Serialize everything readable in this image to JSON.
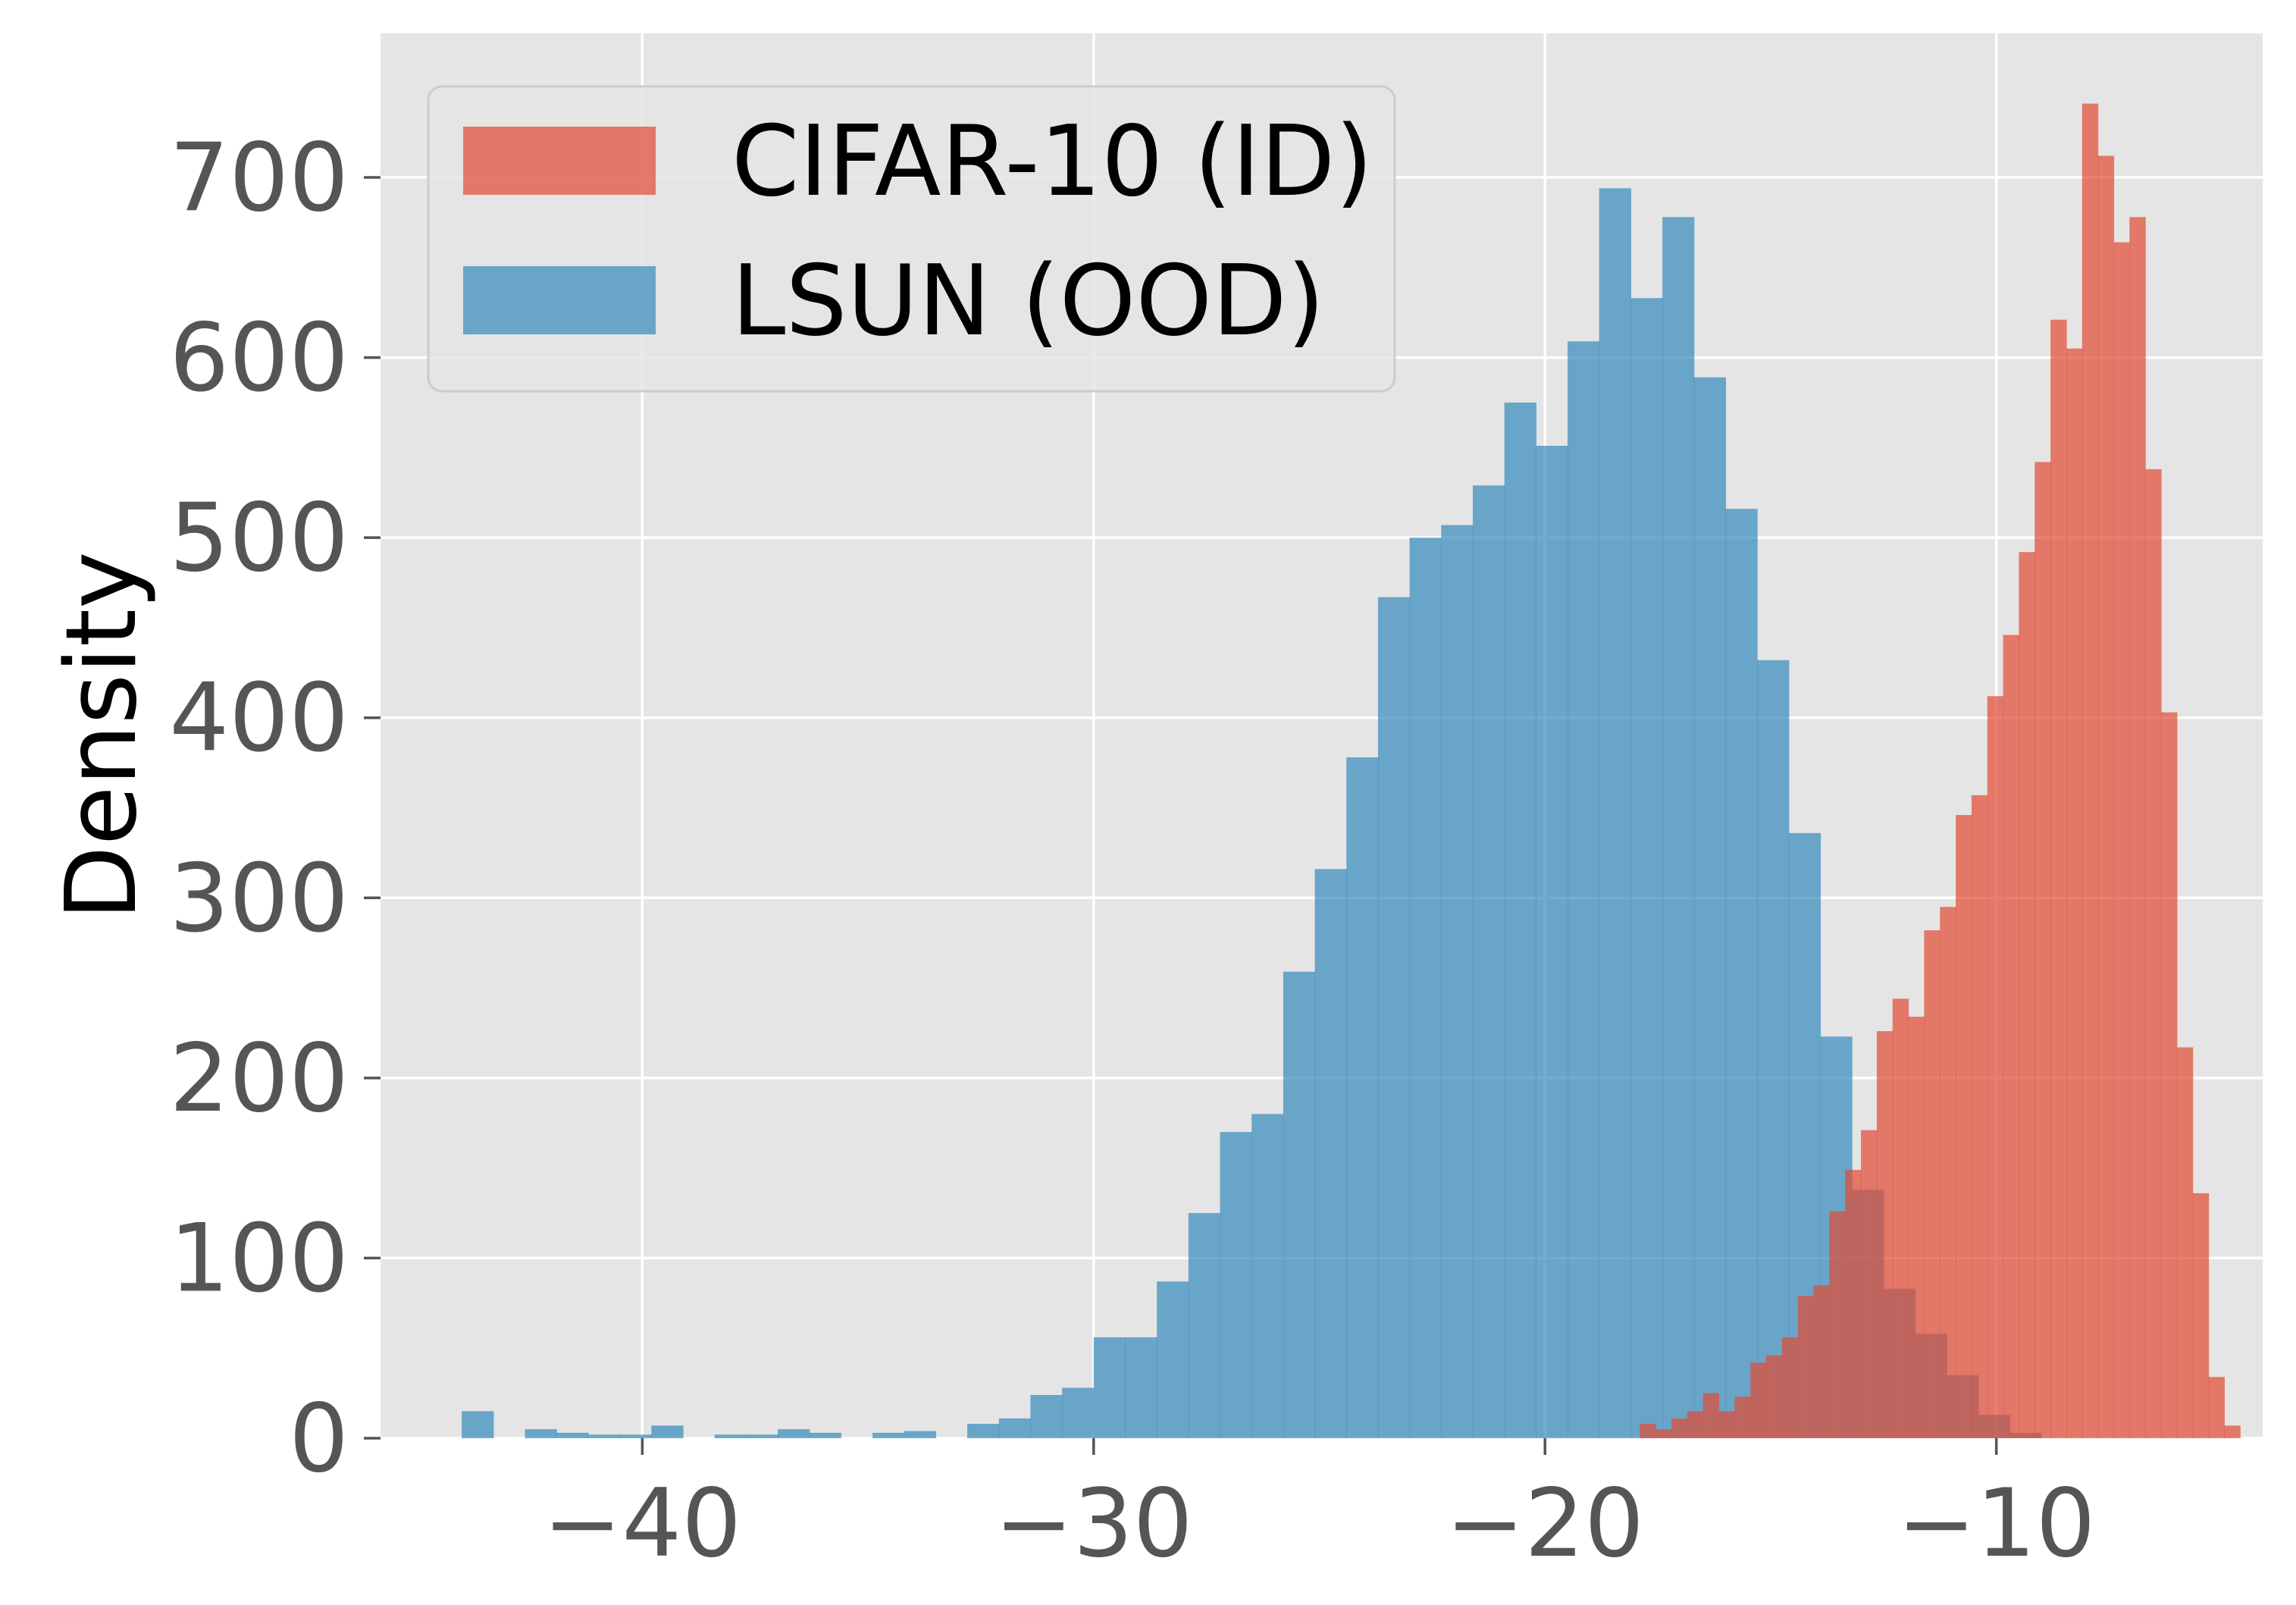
{
  "chart_data": {
    "type": "histogram",
    "title": "",
    "xlabel": "",
    "ylabel": "Density",
    "xlim": [
      -45.8,
      -4.1
    ],
    "ylim": [
      0,
      780
    ],
    "xticks": [
      -40,
      -30,
      -20,
      -10
    ],
    "xtick_labels": [
      "−40",
      "−30",
      "−20",
      "−10"
    ],
    "yticks": [
      0,
      100,
      200,
      300,
      400,
      500,
      600,
      700
    ],
    "ytick_labels": [
      "0",
      "100",
      "200",
      "300",
      "400",
      "500",
      "600",
      "700"
    ],
    "grid": true,
    "legend_position": "top-left",
    "style": {
      "background": "#e5e5e5",
      "grid_color": "#ffffff"
    },
    "series": [
      {
        "name": "LSUN (OOD)",
        "color": "#348abd",
        "bin_width": 0.7,
        "bins": [
          [
            -44.0,
            15
          ],
          [
            -43.3,
            0
          ],
          [
            -42.6,
            5
          ],
          [
            -41.9,
            3
          ],
          [
            -41.2,
            2
          ],
          [
            -40.5,
            2
          ],
          [
            -39.8,
            7
          ],
          [
            -39.1,
            0
          ],
          [
            -38.4,
            2
          ],
          [
            -37.7,
            2
          ],
          [
            -37.0,
            5
          ],
          [
            -36.3,
            3
          ],
          [
            -35.6,
            0
          ],
          [
            -34.9,
            3
          ],
          [
            -34.2,
            4
          ],
          [
            -33.5,
            0
          ],
          [
            -32.8,
            8
          ],
          [
            -32.1,
            11
          ],
          [
            -31.4,
            24
          ],
          [
            -30.7,
            28
          ],
          [
            -30.0,
            56
          ],
          [
            -29.3,
            56
          ],
          [
            -28.6,
            87
          ],
          [
            -27.9,
            125
          ],
          [
            -27.2,
            170
          ],
          [
            -26.5,
            180
          ],
          [
            -25.8,
            259
          ],
          [
            -25.1,
            316
          ],
          [
            -24.4,
            378
          ],
          [
            -23.7,
            467
          ],
          [
            -23.0,
            500
          ],
          [
            -22.3,
            507
          ],
          [
            -21.6,
            529
          ],
          [
            -20.9,
            575
          ],
          [
            -20.2,
            551
          ],
          [
            -19.5,
            609
          ],
          [
            -18.8,
            694
          ],
          [
            -18.1,
            633
          ],
          [
            -17.4,
            678
          ],
          [
            -16.7,
            589
          ],
          [
            -16.0,
            516
          ],
          [
            -15.3,
            432
          ],
          [
            -14.6,
            336
          ],
          [
            -13.9,
            223
          ],
          [
            -13.2,
            138
          ],
          [
            -12.5,
            83
          ],
          [
            -11.8,
            58
          ],
          [
            -11.1,
            35
          ],
          [
            -10.4,
            13
          ],
          [
            -9.7,
            3
          ]
        ]
      },
      {
        "name": "CIFAR-10 (ID)",
        "color": "#e24a33",
        "bin_width": 0.35,
        "bins": [
          [
            -17.9,
            8
          ],
          [
            -17.55,
            5
          ],
          [
            -17.2,
            11
          ],
          [
            -16.85,
            15
          ],
          [
            -16.5,
            25
          ],
          [
            -16.15,
            15
          ],
          [
            -15.8,
            23
          ],
          [
            -15.45,
            42
          ],
          [
            -15.1,
            46
          ],
          [
            -14.75,
            56
          ],
          [
            -14.4,
            79
          ],
          [
            -14.05,
            85
          ],
          [
            -13.7,
            126
          ],
          [
            -13.35,
            149
          ],
          [
            -13.0,
            171
          ],
          [
            -12.65,
            226
          ],
          [
            -12.3,
            244
          ],
          [
            -11.95,
            234
          ],
          [
            -11.6,
            282
          ],
          [
            -11.25,
            295
          ],
          [
            -10.9,
            346
          ],
          [
            -10.55,
            357
          ],
          [
            -10.2,
            412
          ],
          [
            -9.85,
            446
          ],
          [
            -9.5,
            492
          ],
          [
            -9.15,
            542
          ],
          [
            -8.8,
            621
          ],
          [
            -8.45,
            605
          ],
          [
            -8.1,
            741
          ],
          [
            -7.75,
            712
          ],
          [
            -7.4,
            664
          ],
          [
            -7.05,
            678
          ],
          [
            -6.7,
            538
          ],
          [
            -6.35,
            403
          ],
          [
            -6.0,
            217
          ],
          [
            -5.65,
            136
          ],
          [
            -5.3,
            34
          ],
          [
            -4.95,
            7
          ]
        ]
      }
    ]
  }
}
